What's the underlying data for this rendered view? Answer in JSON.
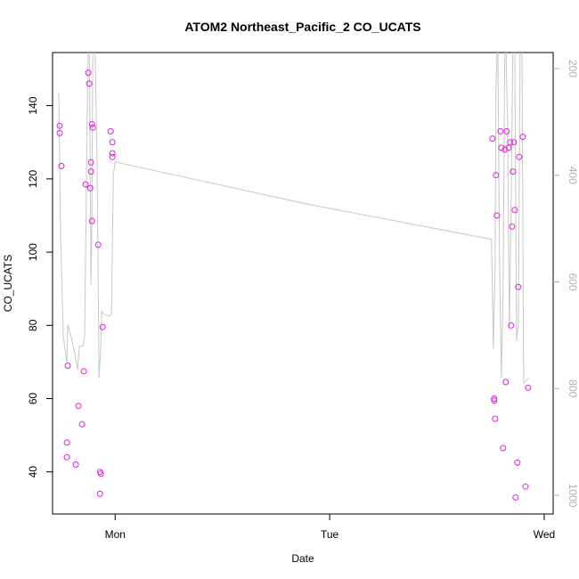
{
  "chart_data": {
    "type": "scatter",
    "title": "ATOM2 Northeast_Pacific_2 CO_UCATS",
    "xlabel": "Date",
    "ylabel": "CO_UCATS",
    "x_ticks": [
      "Mon",
      "Tue",
      "Wed"
    ],
    "x_tick_positions_hours": [
      0,
      24,
      48
    ],
    "xlim_hours": [
      -7,
      49
    ],
    "ylim": [
      28.5,
      154.5
    ],
    "y_ticks": [
      40,
      60,
      80,
      100,
      120,
      140
    ],
    "y2_label": "",
    "y2_ticks": [
      200,
      400,
      600,
      800,
      1000
    ],
    "y2lim_reversed": [
      1035,
      170
    ],
    "points_color": "#e020e0",
    "line_color": "#c8c8c8",
    "grid": false,
    "series": [
      {
        "kind": "points",
        "x_hours": [
          -6.2,
          -6.2,
          -6.0,
          -5.4,
          -5.4,
          -4.4,
          -4.1,
          -3.7,
          -3.5,
          -3.3,
          -3.0,
          -2.9,
          -2.8,
          -2.7,
          -2.7,
          -2.6,
          -2.6,
          -2.5,
          -1.9,
          -1.7,
          -1.7,
          -1.6,
          -1.4,
          -0.5,
          -0.3,
          -0.3,
          -0.3
        ],
        "y": [
          134.5,
          132.5,
          123.5,
          48.0,
          44.0,
          42.0,
          58.0,
          53.0,
          67.5,
          118.5,
          149.0,
          146.0,
          117.5,
          124.5,
          122.0,
          108.5,
          135.0,
          134.0,
          102.0,
          40.0,
          34.0,
          39.5,
          79.5,
          133.0,
          130.0,
          127.0,
          126.0
        ]
      },
      {
        "kind": "points",
        "x_hours": [
          -5.3,
          42.2,
          42.4,
          42.4,
          42.5,
          42.6,
          42.7,
          43.1,
          43.2,
          43.4,
          43.6,
          43.7,
          43.8,
          44.0,
          44.2,
          44.3,
          44.4,
          44.5,
          44.6,
          44.7,
          44.8,
          45.0,
          45.1,
          45.2,
          45.6,
          45.9,
          46.2
        ],
        "y": [
          69.0,
          131.0,
          59.5,
          60.0,
          54.5,
          121.0,
          110.0,
          133.0,
          128.5,
          46.5,
          128.0,
          64.5,
          133.0,
          128.5,
          130.0,
          80.0,
          107.0,
          122.0,
          130.0,
          111.5,
          33.0,
          42.5,
          90.5,
          126.0,
          131.5,
          36.0,
          63.0
        ]
      },
      {
        "kind": "line",
        "axis": "right",
        "x_hours": [
          -6.3,
          -6.1,
          -5.8,
          -5.4,
          -5.3,
          -4.9,
          -4.5,
          -4.2,
          -4.0,
          -3.6,
          -3.4,
          -3.2,
          -3.0,
          -2.9,
          -2.8,
          -2.7,
          -2.6,
          -2.5,
          -2.3,
          -2.0,
          -1.8,
          -1.6,
          -1.5,
          -1.3,
          -0.7,
          -0.4,
          -0.2,
          0.0,
          21.8,
          42.1,
          42.3,
          42.5,
          42.6,
          42.8,
          43.0,
          43.2,
          43.4,
          43.6,
          43.7,
          43.9,
          44.1,
          44.3,
          44.5,
          44.7,
          44.9,
          45.1,
          45.3,
          45.5,
          45.7,
          46.0,
          46.3
        ],
        "y2": [
          245,
          510,
          700,
          752,
          680,
          705,
          735,
          765,
          720,
          720,
          700,
          400,
          150,
          110,
          380,
          605,
          480,
          150,
          110,
          400,
          780,
          720,
          655,
          660,
          665,
          660,
          400,
          375,
          455,
          520,
          725,
          570,
          235,
          130,
          560,
          780,
          620,
          140,
          145,
          300,
          690,
          460,
          155,
          130,
          710,
          680,
          160,
          140,
          790,
          785,
          780
        ]
      }
    ]
  }
}
